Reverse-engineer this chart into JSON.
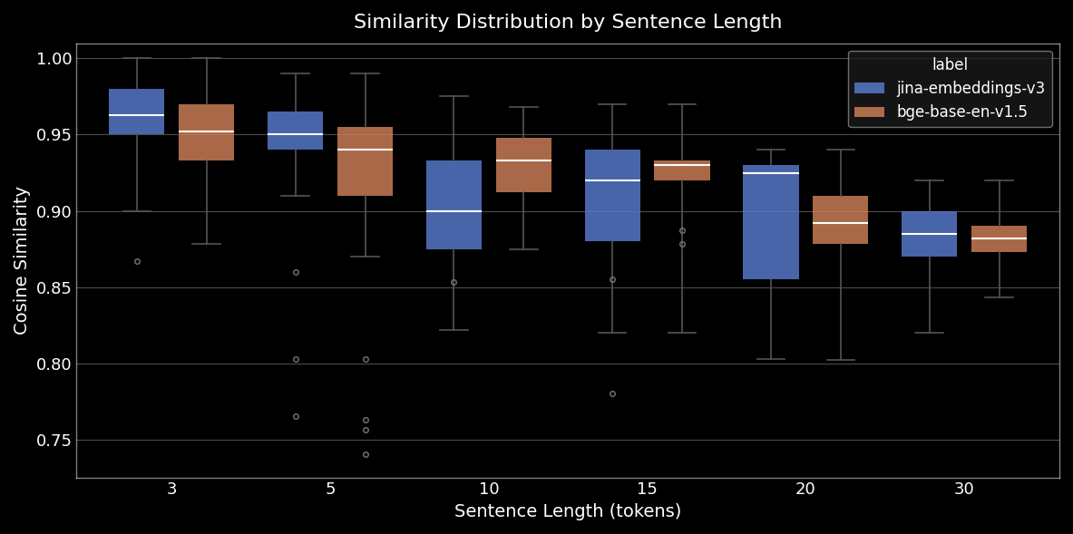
{
  "title": "Similarity Distribution by Sentence Length",
  "xlabel": "Sentence Length (tokens)",
  "ylabel": "Cosine Similarity",
  "background_color": "#000000",
  "grid_color": "#ffffff",
  "categories": [
    3,
    5,
    10,
    15,
    20,
    30
  ],
  "legend_title": "label",
  "series": [
    {
      "label": "jina-embeddings-v3",
      "color": "#5b7fd4",
      "boxes": [
        {
          "q1": 0.95,
          "median": 0.963,
          "q3": 0.98,
          "whislo": 0.9,
          "whishi": 1.0,
          "fliers": [
            0.867
          ]
        },
        {
          "q1": 0.94,
          "median": 0.95,
          "q3": 0.965,
          "whislo": 0.91,
          "whishi": 0.99,
          "fliers": [
            0.86,
            0.803,
            0.765
          ]
        },
        {
          "q1": 0.875,
          "median": 0.9,
          "q3": 0.933,
          "whislo": 0.822,
          "whishi": 0.975,
          "fliers": [
            0.853
          ]
        },
        {
          "q1": 0.88,
          "median": 0.92,
          "q3": 0.94,
          "whislo": 0.82,
          "whishi": 0.97,
          "fliers": [
            0.855,
            0.78
          ]
        },
        {
          "q1": 0.855,
          "median": 0.925,
          "q3": 0.93,
          "whislo": 0.803,
          "whishi": 0.94,
          "fliers": []
        },
        {
          "q1": 0.87,
          "median": 0.885,
          "q3": 0.9,
          "whislo": 0.82,
          "whishi": 0.92,
          "fliers": []
        }
      ]
    },
    {
      "label": "bge-base-en-v1.5",
      "color": "#d4845b",
      "boxes": [
        {
          "q1": 0.933,
          "median": 0.952,
          "q3": 0.97,
          "whislo": 0.878,
          "whishi": 1.0,
          "fliers": []
        },
        {
          "q1": 0.91,
          "median": 0.94,
          "q3": 0.955,
          "whislo": 0.87,
          "whishi": 0.99,
          "fliers": [
            0.803,
            0.763,
            0.756,
            0.74
          ]
        },
        {
          "q1": 0.912,
          "median": 0.933,
          "q3": 0.948,
          "whislo": 0.875,
          "whishi": 0.968,
          "fliers": []
        },
        {
          "q1": 0.92,
          "median": 0.93,
          "q3": 0.933,
          "whislo": 0.82,
          "whishi": 0.97,
          "fliers": [
            0.887,
            0.878
          ]
        },
        {
          "q1": 0.878,
          "median": 0.892,
          "q3": 0.91,
          "whislo": 0.802,
          "whishi": 0.94,
          "fliers": []
        },
        {
          "q1": 0.873,
          "median": 0.882,
          "q3": 0.89,
          "whislo": 0.843,
          "whishi": 0.92,
          "fliers": []
        }
      ]
    }
  ]
}
